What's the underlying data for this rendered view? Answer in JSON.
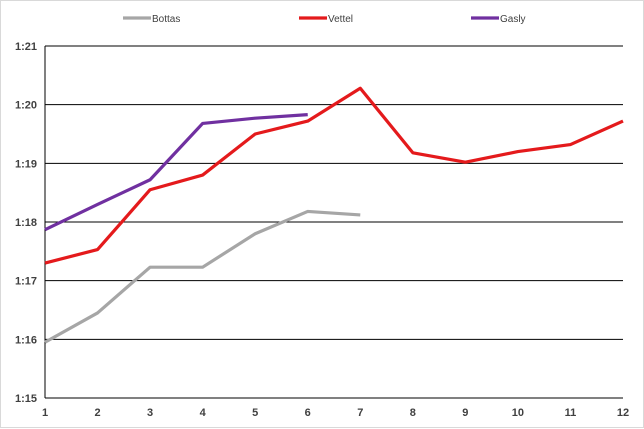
{
  "chart_data": {
    "type": "line",
    "title": "",
    "xlabel": "",
    "ylabel": "",
    "x": [
      1,
      2,
      3,
      4,
      5,
      6,
      7,
      8,
      9,
      10,
      11,
      12
    ],
    "x_tick_labels": [
      "1",
      "2",
      "3",
      "4",
      "5",
      "6",
      "7",
      "8",
      "9",
      "10",
      "11",
      "12"
    ],
    "xlim": [
      1,
      12
    ],
    "y_unit": "seconds",
    "ylim": [
      75,
      81
    ],
    "y_ticks": [
      75,
      76,
      77,
      78,
      79,
      80,
      81
    ],
    "y_tick_labels": [
      "1:15",
      "1:16",
      "1:17",
      "1:18",
      "1:19",
      "1:20",
      "1:21"
    ],
    "grid": "horizontal",
    "legend_position": "top",
    "series": [
      {
        "name": "Bottas",
        "color": "#a6a6a6",
        "values": [
          75.95,
          76.45,
          77.23,
          77.23,
          77.8,
          78.18,
          78.12,
          null,
          null,
          null,
          null,
          null
        ]
      },
      {
        "name": "Vettel",
        "color": "#e41a1c",
        "values": [
          77.3,
          77.53,
          78.55,
          78.8,
          79.5,
          79.72,
          80.28,
          79.18,
          79.02,
          79.2,
          79.32,
          79.72
        ]
      },
      {
        "name": "Gasly",
        "color": "#7030a0",
        "values": [
          77.87,
          78.3,
          78.72,
          79.68,
          79.77,
          79.83,
          null,
          null,
          null,
          null,
          null,
          null
        ]
      }
    ]
  }
}
